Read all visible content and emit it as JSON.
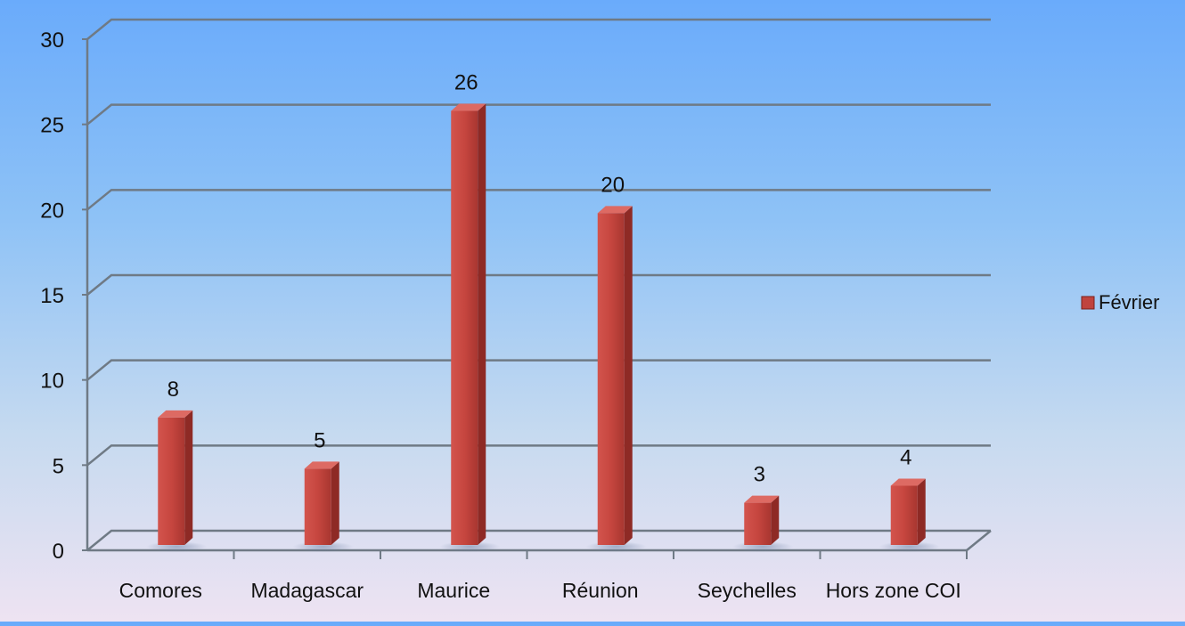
{
  "chart_data": {
    "type": "bar",
    "title": "",
    "xlabel": "",
    "ylabel": "",
    "categories": [
      "Comores",
      "Madagascar",
      "Maurice",
      "Réunion",
      "Seychelles",
      "Hors zone COI"
    ],
    "series": [
      {
        "name": "Février",
        "values": [
          8,
          5,
          26,
          20,
          3,
          4
        ],
        "color": "#c0443e"
      }
    ],
    "ylim": [
      0,
      30
    ],
    "yticks": [
      "0",
      "5",
      "10",
      "15",
      "20",
      "25",
      "30"
    ],
    "data_labels": [
      "8",
      "5",
      "26",
      "20",
      "3",
      "4"
    ],
    "grid": true,
    "legend_position": "right",
    "style": "3d-column"
  }
}
